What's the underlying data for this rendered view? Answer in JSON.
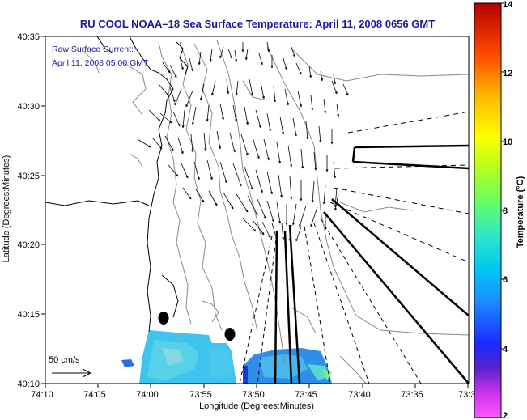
{
  "title": "RU COOL  NOAA–18  Sea Surface Temperature:  April 11, 2008 0656 GMT",
  "inset": {
    "line1": "Raw Surface Current:",
    "line2": "April 11, 2008 05:00 GMT"
  },
  "axes": {
    "xlabel": "Longitude (Degrees:Minutes)",
    "ylabel": "Latitude (Degrees:Minutes)",
    "xticks": [
      "74:10",
      "74:05",
      "74:00",
      "73:55",
      "73:50",
      "73:45",
      "73:40",
      "73:35",
      "73:3"
    ],
    "yticks": [
      "40:35",
      "40:30",
      "40:25",
      "40:20",
      "40:15",
      "40:10"
    ]
  },
  "colorbar": {
    "label": "Temperature (°C)",
    "ticks": [
      "14",
      "12",
      "10",
      "8",
      "6",
      "4",
      "2"
    ],
    "min": 2,
    "max": 14
  },
  "scale_arrow": {
    "label": "50 cm/s"
  },
  "colors": {
    "title": "#1a1aa0",
    "coast": "#000000",
    "bathymetry": "#888888"
  }
}
